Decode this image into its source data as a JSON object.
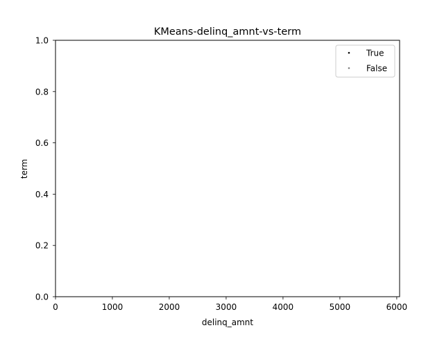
{
  "chart_data": {
    "type": "scatter",
    "title": "KMeans-delinq_amnt-vs-term",
    "xlabel": "delinq_amnt",
    "ylabel": "term",
    "xlim": [
      0,
      6050
    ],
    "ylim": [
      0.0,
      1.0
    ],
    "x_ticks": [
      0,
      1000,
      2000,
      3000,
      4000,
      5000,
      6000
    ],
    "x_tick_labels": [
      "0",
      "1000",
      "2000",
      "3000",
      "4000",
      "5000",
      "6000"
    ],
    "y_ticks": [
      0.0,
      0.2,
      0.4,
      0.6,
      0.8,
      1.0
    ],
    "y_tick_labels": [
      "0.0",
      "0.2",
      "0.4",
      "0.6",
      "0.8",
      "1.0"
    ],
    "grid": false,
    "legend_position": "top-right",
    "series": [
      {
        "name": "True",
        "color": "#000000",
        "points": []
      },
      {
        "name": "False",
        "color": "#808080",
        "points": []
      }
    ]
  }
}
